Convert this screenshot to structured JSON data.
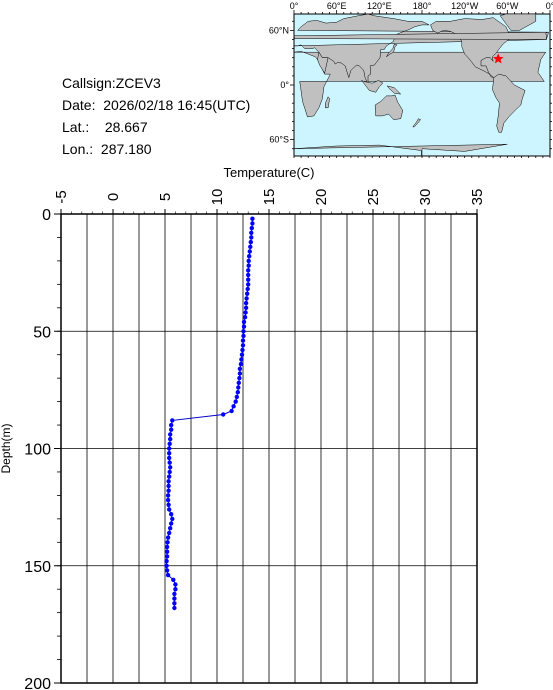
{
  "station": {
    "callsign_label": "Callsign:",
    "callsign": "ZCEV3",
    "date_label": "Date:",
    "date": "2026/02/18 16:45(UTC)",
    "lat_label": "Lat.:",
    "lat": "28.667",
    "lon_label": "Lon.:",
    "lon": "287.180"
  },
  "map": {
    "lon_ticks": [
      "0°",
      "60°E",
      "120°E",
      "180°",
      "120°W",
      "60°W",
      "0°"
    ],
    "lat_ticks": [
      "60°N",
      "0°",
      "60°S"
    ],
    "ocean_color": "#ccf5ff",
    "land_color": "#c0c0c0",
    "marker_color": "#ff0000",
    "marker_lon": 287.18,
    "marker_lat": 28.667
  },
  "chart_data": {
    "type": "line",
    "title": "",
    "xlabel": "Temperature(C)",
    "ylabel": "Depth(m)",
    "xlim": [
      -5,
      35
    ],
    "ylim": [
      0,
      200
    ],
    "y_inverted": true,
    "x_ticks": [
      -5,
      0,
      5,
      10,
      15,
      20,
      25,
      30,
      35
    ],
    "y_ticks": [
      0,
      50,
      100,
      150,
      200
    ],
    "grid": true,
    "line_color": "#0000cc",
    "marker_color": "#0000ff",
    "series": [
      {
        "points": [
          [
            13.4,
            2
          ],
          [
            13.4,
            4
          ],
          [
            13.35,
            6
          ],
          [
            13.3,
            8
          ],
          [
            13.3,
            10
          ],
          [
            13.25,
            12
          ],
          [
            13.2,
            14
          ],
          [
            13.15,
            16
          ],
          [
            13.1,
            18
          ],
          [
            13.05,
            20
          ],
          [
            13.05,
            22
          ],
          [
            13.0,
            24
          ],
          [
            13.0,
            26
          ],
          [
            13.0,
            28
          ],
          [
            13.0,
            30
          ],
          [
            12.95,
            32
          ],
          [
            12.9,
            34
          ],
          [
            12.85,
            36
          ],
          [
            12.8,
            38
          ],
          [
            12.8,
            40
          ],
          [
            12.75,
            42
          ],
          [
            12.7,
            44
          ],
          [
            12.6,
            46
          ],
          [
            12.6,
            48
          ],
          [
            12.55,
            50
          ],
          [
            12.55,
            52
          ],
          [
            12.5,
            54
          ],
          [
            12.5,
            56
          ],
          [
            12.45,
            58
          ],
          [
            12.4,
            60
          ],
          [
            12.35,
            62
          ],
          [
            12.3,
            64
          ],
          [
            12.2,
            66
          ],
          [
            12.2,
            68
          ],
          [
            12.15,
            70
          ],
          [
            12.1,
            72
          ],
          [
            12.05,
            74
          ],
          [
            12.0,
            76
          ],
          [
            11.9,
            78
          ],
          [
            11.8,
            80
          ],
          [
            11.6,
            82
          ],
          [
            11.4,
            84
          ],
          [
            10.6,
            85.5
          ],
          [
            5.7,
            88
          ],
          [
            5.6,
            90
          ],
          [
            5.6,
            92
          ],
          [
            5.5,
            94
          ],
          [
            5.5,
            96
          ],
          [
            5.45,
            98
          ],
          [
            5.4,
            100
          ],
          [
            5.4,
            102
          ],
          [
            5.4,
            104
          ],
          [
            5.45,
            106
          ],
          [
            5.5,
            108
          ],
          [
            5.45,
            110
          ],
          [
            5.4,
            112
          ],
          [
            5.35,
            114
          ],
          [
            5.35,
            116
          ],
          [
            5.35,
            118
          ],
          [
            5.3,
            120
          ],
          [
            5.3,
            122
          ],
          [
            5.35,
            124
          ],
          [
            5.4,
            126
          ],
          [
            5.6,
            128
          ],
          [
            5.7,
            130
          ],
          [
            5.6,
            132
          ],
          [
            5.5,
            134
          ],
          [
            5.4,
            136
          ],
          [
            5.3,
            138
          ],
          [
            5.25,
            140
          ],
          [
            5.2,
            142
          ],
          [
            5.2,
            144
          ],
          [
            5.2,
            146
          ],
          [
            5.15,
            148
          ],
          [
            5.15,
            150
          ],
          [
            5.2,
            152
          ],
          [
            5.3,
            154
          ],
          [
            5.8,
            156
          ],
          [
            6.0,
            158
          ],
          [
            6.0,
            160
          ],
          [
            5.9,
            162
          ],
          [
            5.9,
            164
          ],
          [
            5.9,
            166
          ],
          [
            5.9,
            168
          ]
        ]
      }
    ]
  }
}
